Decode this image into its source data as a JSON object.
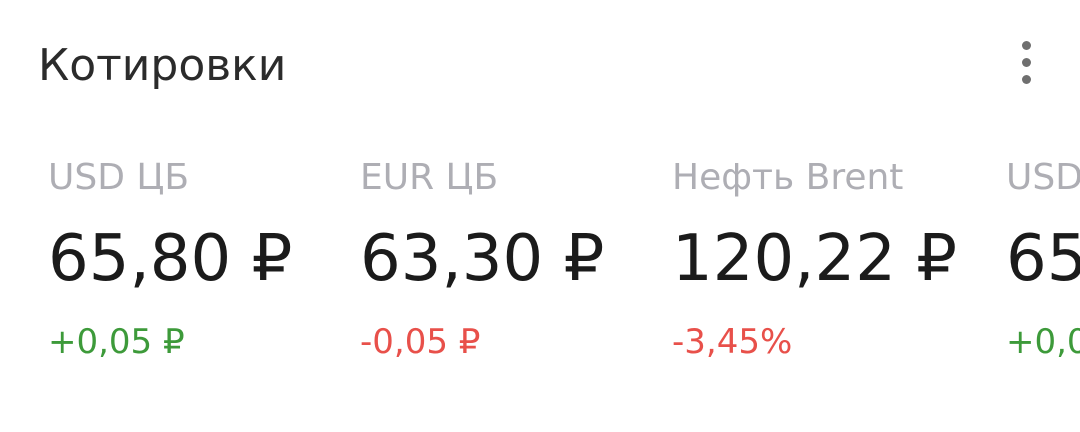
{
  "header": {
    "title": "Котировки",
    "menu_icon": "more-vertical-icon"
  },
  "colors": {
    "positive": "#3d9a3a",
    "negative": "#e8504a",
    "label": "#aeaeb4",
    "value": "#1b1b1b"
  },
  "quotes": [
    {
      "name": "USD ЦБ",
      "value": "65,80 ₽",
      "change": "+0,05 ₽",
      "trend": "up"
    },
    {
      "name": "EUR ЦБ",
      "value": "63,30 ₽",
      "change": "-0,05 ₽",
      "trend": "down"
    },
    {
      "name": "Нефть Brent",
      "value": "120,22 ₽",
      "change": "-3,45%",
      "trend": "down"
    },
    {
      "name": "USD",
      "value": "65",
      "change": "+0,0",
      "trend": "up"
    }
  ]
}
